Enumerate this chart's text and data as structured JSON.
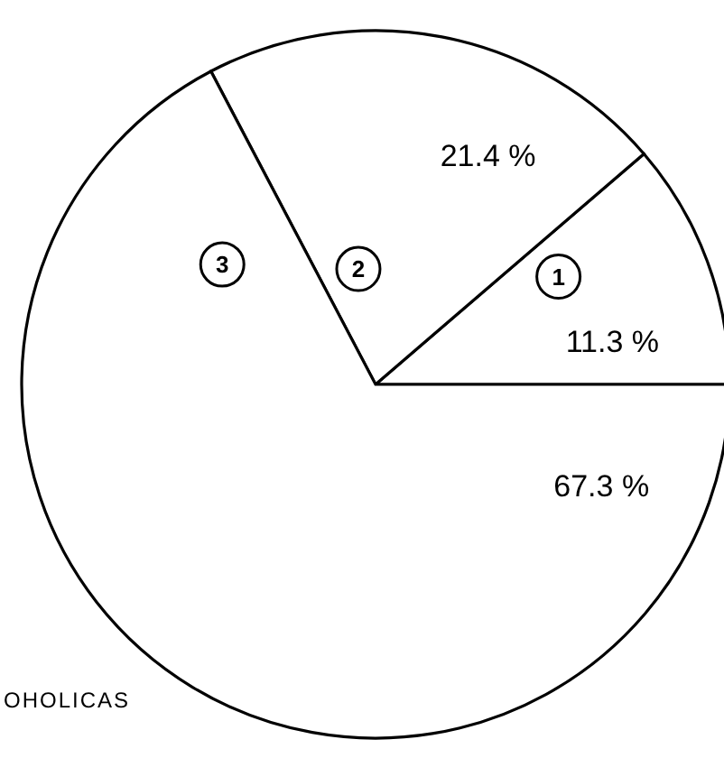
{
  "chart_data": {
    "type": "pie",
    "categories": [
      "1",
      "2",
      "3"
    ],
    "values": [
      11.3,
      21.4,
      67.3
    ],
    "value_labels": [
      "11.3 %",
      "21.4 %",
      "67.3 %"
    ],
    "colors": [
      "#ffffff",
      "#ffffff",
      "#ffffff"
    ],
    "annotations": [
      "OHOLICAS"
    ]
  }
}
